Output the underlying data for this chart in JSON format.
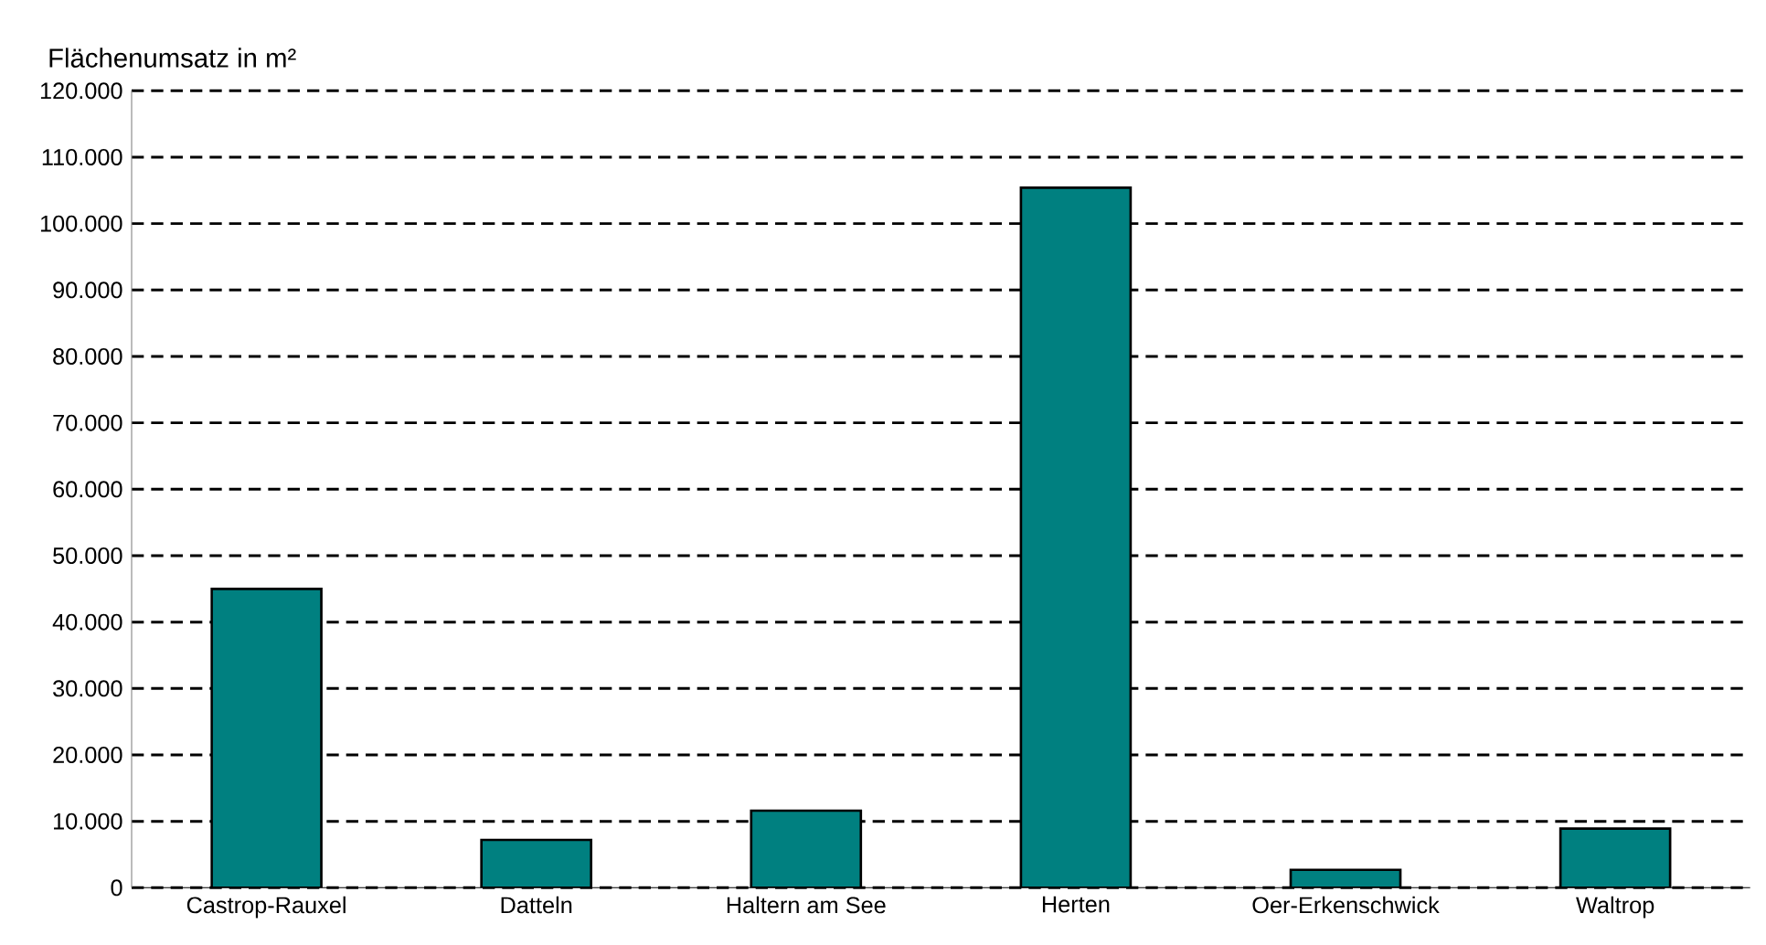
{
  "chart_data": {
    "type": "bar",
    "ylabel": "Flächenumsatz in m²",
    "categories": [
      "Castrop-Rauxel",
      "Datteln",
      "Haltern am See",
      "Herten",
      "Oer-Erkenschwick",
      "Waltrop"
    ],
    "values": [
      45000,
      7200,
      11600,
      105400,
      2700,
      8900
    ],
    "color": "#008080",
    "ylim": [
      0,
      120000
    ],
    "yticks": [
      0,
      {
        "value": 10000,
        "label": "10.000"
      },
      {
        "value": 20000,
        "label": "20.000"
      },
      {
        "value": 30000,
        "label": "30.000"
      },
      {
        "value": 40000,
        "label": "40.000"
      },
      {
        "value": 50000,
        "label": "50.000"
      },
      {
        "value": 60000,
        "label": "60.000"
      },
      {
        "value": 70000,
        "label": "70.000"
      },
      {
        "value": 80000,
        "label": "80.000"
      },
      {
        "value": 90000,
        "label": "90.000"
      },
      {
        "value": 100000,
        "label": "100.000"
      },
      {
        "value": 110000,
        "label": "110.000"
      },
      {
        "value": 120000,
        "label": "120.000"
      }
    ],
    "grid": "y",
    "line_style": "dashed"
  }
}
